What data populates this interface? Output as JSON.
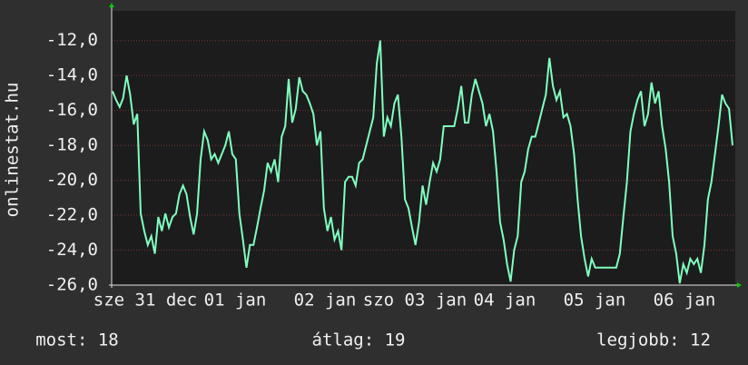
{
  "chart_data": {
    "type": "line",
    "ylabel": "onlinestat.hu",
    "x_labels": [
      "sze 31 dec",
      "01 jan",
      "02 jan",
      "szo 03 jan",
      "04 jan",
      "05 jan",
      "06 jan"
    ],
    "ylim": [
      -26,
      -10.3
    ],
    "yticks": [
      {
        "value": -26,
        "label": "-26,0"
      },
      {
        "value": -24,
        "label": "-24,0"
      },
      {
        "value": -22,
        "label": "-22,0"
      },
      {
        "value": -20,
        "label": "-20,0"
      },
      {
        "value": -18,
        "label": "-18,0"
      },
      {
        "value": -16,
        "label": "-16,0"
      },
      {
        "value": -14,
        "label": "-14,0"
      },
      {
        "value": -12,
        "label": "-12,0"
      }
    ],
    "grid": true,
    "color": "#80ffbf",
    "values": [
      -14.9,
      -15.4,
      -15.8,
      -15.3,
      -14.0,
      -15.1,
      -16.8,
      -16.2,
      -21.9,
      -22.9,
      -23.7,
      -23.2,
      -24.2,
      -22.1,
      -22.9,
      -21.9,
      -22.7,
      -22.1,
      -21.9,
      -20.8,
      -20.3,
      -20.8,
      -22.1,
      -23.1,
      -21.9,
      -18.8,
      -17.2,
      -17.7,
      -18.8,
      -18.5,
      -19.0,
      -18.5,
      -18.0,
      -17.2,
      -18.5,
      -18.8,
      -21.9,
      -23.4,
      -25.0,
      -23.7,
      -23.7,
      -22.7,
      -21.6,
      -20.6,
      -19.0,
      -19.5,
      -18.8,
      -20.1,
      -17.5,
      -16.9,
      -14.2,
      -16.7,
      -15.9,
      -14.1,
      -14.9,
      -15.1,
      -15.6,
      -16.2,
      -18.0,
      -17.2,
      -21.6,
      -22.9,
      -22.1,
      -23.4,
      -22.9,
      -24.0,
      -20.1,
      -19.8,
      -19.8,
      -20.3,
      -19.0,
      -18.8,
      -18.0,
      -17.2,
      -16.4,
      -13.3,
      -12.0,
      -17.5,
      -16.4,
      -16.9,
      -15.6,
      -15.1,
      -17.5,
      -21.1,
      -21.6,
      -22.7,
      -23.7,
      -22.4,
      -20.3,
      -21.4,
      -20.1,
      -19.0,
      -19.5,
      -18.8,
      -16.9,
      -16.9,
      -16.9,
      -16.9,
      -15.9,
      -14.6,
      -16.7,
      -16.7,
      -15.1,
      -14.2,
      -14.9,
      -15.6,
      -16.9,
      -16.2,
      -17.2,
      -19.5,
      -22.4,
      -23.4,
      -24.8,
      -25.8,
      -24.0,
      -23.2,
      -20.1,
      -19.5,
      -18.2,
      -17.5,
      -17.5,
      -16.7,
      -15.9,
      -15.1,
      -13.0,
      -14.6,
      -15.4,
      -14.9,
      -16.4,
      -16.2,
      -16.9,
      -18.5,
      -21.1,
      -23.2,
      -24.5,
      -25.5,
      -24.5,
      -25.0,
      -25.0,
      -25.0,
      -25.0,
      -25.0,
      -25.0,
      -25.0,
      -24.2,
      -22.1,
      -20.1,
      -17.2,
      -16.2,
      -15.4,
      -14.9,
      -16.9,
      -16.2,
      -14.4,
      -15.6,
      -14.9,
      -16.9,
      -18.2,
      -20.1,
      -23.2,
      -24.2,
      -25.9,
      -24.8,
      -25.3,
      -24.5,
      -24.8,
      -24.5,
      -25.3,
      -23.7,
      -21.1,
      -20.1,
      -18.5,
      -16.9,
      -15.1,
      -15.6,
      -15.9,
      -18.0
    ],
    "footer": [
      "most: 18",
      "átlag: 19",
      "legjobb: 12"
    ]
  }
}
